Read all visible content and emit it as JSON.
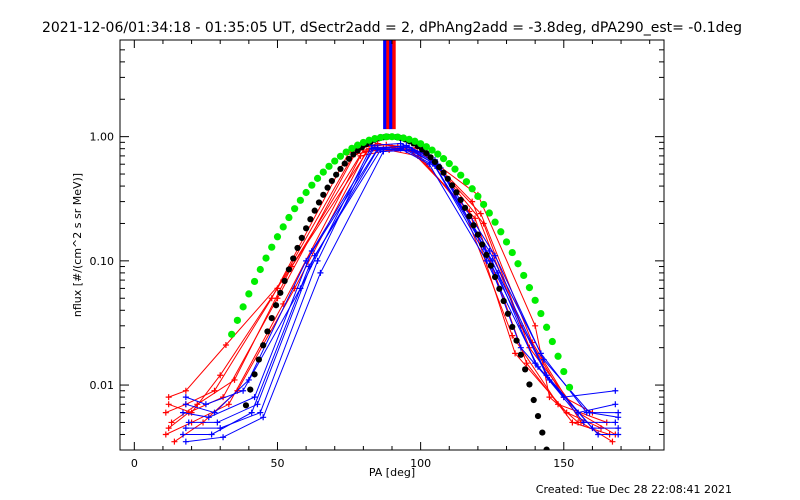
{
  "title": "2021-12-06/01:34:18 - 01:35:05 UT, dSectr2add = 2, dPhAng2add = -3.8deg, dPA290_est= -0.1deg",
  "footer": "Created: Tue Dec 28 22:08:41 2021",
  "chart_data": {
    "type": "line",
    "title": "2021-12-06/01:34:18 - 01:35:05 UT, dSectr2add = 2, dPhAng2add = -3.8deg, dPA290_est= -0.1deg",
    "xlabel": "PA [deg]",
    "ylabel": "nflux [#/(cm^2 s sr MeV)]",
    "xlim": [
      -5,
      185
    ],
    "ylim": [
      0.003,
      6.0
    ],
    "yscale": "log",
    "xticks": [
      0,
      50,
      100,
      150
    ],
    "xtick_labels": [
      "0",
      "50",
      "100",
      "150"
    ],
    "yticks": [
      0.01,
      0.1,
      1.0
    ],
    "ytick_labels": [
      "0.01",
      "0.10",
      "1.00"
    ],
    "grid": false,
    "colors": {
      "red": "#ff0000",
      "blue": "#0000ff",
      "green": "#00ee00",
      "black": "#000000"
    },
    "vertical_bars": [
      {
        "x": 87.5,
        "color": "#0000ff"
      },
      {
        "x": 88.6,
        "color": "#ff0000"
      },
      {
        "x": 89.6,
        "color": "#0000ff"
      },
      {
        "x": 90.7,
        "color": "#ff0000"
      }
    ],
    "red_series": [
      {
        "x": [
          12,
          18,
          32,
          52,
          80,
          90,
          100,
          120,
          140,
          145,
          155
        ],
        "y": [
          0.008,
          0.009,
          0.021,
          0.07,
          0.78,
          0.82,
          0.75,
          0.34,
          0.03,
          0.008,
          0.005
        ]
      },
      {
        "x": [
          12,
          20,
          30,
          50,
          78,
          88,
          100,
          118,
          135,
          150,
          160
        ],
        "y": [
          0.007,
          0.006,
          0.012,
          0.06,
          0.82,
          0.86,
          0.8,
          0.3,
          0.03,
          0.008,
          0.006
        ]
      },
      {
        "x": [
          11,
          18,
          28,
          48,
          75,
          85,
          98,
          115,
          132,
          148,
          165
        ],
        "y": [
          0.006,
          0.007,
          0.009,
          0.05,
          0.75,
          0.88,
          0.78,
          0.26,
          0.025,
          0.007,
          0.005
        ]
      },
      {
        "x": [
          13,
          22,
          35,
          55,
          82,
          92,
          102,
          122,
          138,
          155,
          168
        ],
        "y": [
          0.005,
          0.007,
          0.011,
          0.09,
          0.8,
          0.84,
          0.72,
          0.2,
          0.02,
          0.006,
          0.004
        ]
      },
      {
        "x": [
          12,
          19,
          31,
          50,
          77,
          87,
          97,
          117,
          133,
          151,
          163
        ],
        "y": [
          0.0045,
          0.006,
          0.008,
          0.05,
          0.72,
          0.8,
          0.76,
          0.25,
          0.018,
          0.006,
          0.0045
        ]
      },
      {
        "x": [
          11,
          20,
          33,
          52,
          79,
          89,
          99,
          119,
          137,
          153,
          166
        ],
        "y": [
          0.004,
          0.005,
          0.007,
          0.045,
          0.7,
          0.78,
          0.7,
          0.22,
          0.015,
          0.005,
          0.004
        ]
      },
      {
        "x": [
          14,
          24,
          36,
          56,
          81,
          91,
          101,
          121,
          139,
          156,
          167
        ],
        "y": [
          0.0035,
          0.005,
          0.009,
          0.06,
          0.76,
          0.8,
          0.74,
          0.24,
          0.022,
          0.005,
          0.0035
        ]
      }
    ],
    "blue_series": [
      {
        "x": [
          18,
          25,
          38,
          58,
          83,
          93,
          103,
          122,
          135,
          150,
          168
        ],
        "y": [
          0.008,
          0.007,
          0.009,
          0.06,
          0.85,
          0.88,
          0.7,
          0.13,
          0.02,
          0.008,
          0.009
        ]
      },
      {
        "x": [
          18,
          28,
          40,
          60,
          85,
          95,
          105,
          125,
          140,
          155,
          168
        ],
        "y": [
          0.007,
          0.006,
          0.011,
          0.1,
          0.8,
          0.85,
          0.65,
          0.1,
          0.015,
          0.006,
          0.007
        ]
      },
      {
        "x": [
          17,
          26,
          42,
          62,
          84,
          94,
          104,
          124,
          142,
          158,
          169
        ],
        "y": [
          0.006,
          0.0055,
          0.008,
          0.12,
          0.82,
          0.83,
          0.62,
          0.12,
          0.018,
          0.006,
          0.006
        ]
      },
      {
        "x": [
          19,
          29,
          43,
          63,
          86,
          96,
          106,
          126,
          143,
          159,
          169
        ],
        "y": [
          0.005,
          0.005,
          0.007,
          0.11,
          0.78,
          0.82,
          0.6,
          0.11,
          0.016,
          0.006,
          0.0055
        ]
      },
      {
        "x": [
          18,
          30,
          44,
          64,
          83,
          93,
          103,
          123,
          141,
          157,
          168
        ],
        "y": [
          0.0045,
          0.0045,
          0.006,
          0.1,
          0.8,
          0.8,
          0.6,
          0.1,
          0.014,
          0.005,
          0.005
        ]
      },
      {
        "x": [
          17,
          27,
          41,
          61,
          85,
          95,
          105,
          125,
          144,
          160,
          169
        ],
        "y": [
          0.004,
          0.004,
          0.006,
          0.09,
          0.79,
          0.78,
          0.58,
          0.09,
          0.012,
          0.0045,
          0.0045
        ]
      },
      {
        "x": [
          18,
          31,
          45,
          65,
          87,
          97,
          107,
          127,
          145,
          162,
          169
        ],
        "y": [
          0.0035,
          0.0038,
          0.0055,
          0.08,
          0.76,
          0.78,
          0.56,
          0.08,
          0.011,
          0.004,
          0.004
        ]
      }
    ],
    "green_fit": {
      "center": 89.5,
      "sigma": 20.5,
      "x_range": [
        34,
        152
      ],
      "step": 2
    },
    "black_fit": {
      "center": 89.5,
      "sigma": 16.0,
      "x_range": [
        39,
        151
      ],
      "step": 1.5
    }
  }
}
